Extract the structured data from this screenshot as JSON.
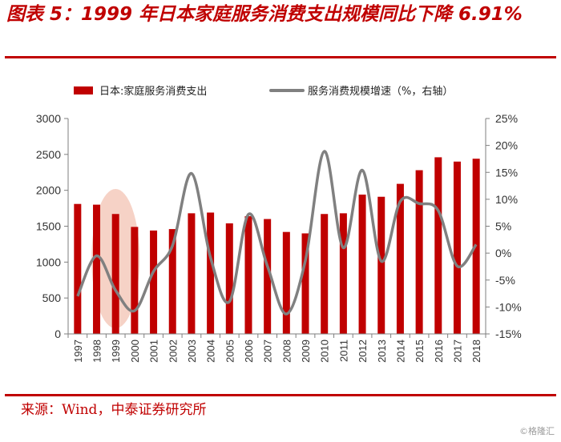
{
  "title": "图表 5：1999 年日本家庭服务消费支出规模同比下降 6.91%",
  "source": "来源：Wind，中泰证券研究所",
  "watermark": "©格隆汇",
  "colors": {
    "bar": "#c00000",
    "line": "#808080",
    "highlight": "#f4c7b8",
    "accent": "#c00000"
  },
  "chart_data": {
    "type": "bar",
    "categories": [
      "1997",
      "1998",
      "1999",
      "2000",
      "2001",
      "2002",
      "2003",
      "2004",
      "2005",
      "2006",
      "2007",
      "2008",
      "2009",
      "2010",
      "2011",
      "2012",
      "2013",
      "2014",
      "2015",
      "2016",
      "2017",
      "2018"
    ],
    "series": [
      {
        "name": "日本:家庭服务消费支出",
        "type": "bar",
        "axis": "left",
        "values": [
          1810,
          1800,
          1670,
          1490,
          1440,
          1460,
          1680,
          1690,
          1540,
          1640,
          1600,
          1420,
          1400,
          1670,
          1680,
          1940,
          1910,
          2090,
          2280,
          2460,
          2400,
          2440
        ]
      },
      {
        "name": "服务消费规模增速（%，右轴）",
        "type": "line",
        "axis": "right",
        "values": [
          -8.0,
          -0.5,
          -6.91,
          -10.7,
          -3.4,
          1.4,
          14.8,
          -0.8,
          -9.0,
          7.2,
          -2.4,
          -11.3,
          -1.4,
          18.9,
          1.0,
          15.4,
          -1.5,
          9.6,
          9.2,
          7.9,
          -2.4,
          1.6
        ]
      }
    ],
    "y_left": {
      "lim": [
        0,
        3000
      ],
      "ticks": [
        "0",
        "500",
        "1000",
        "1500",
        "2000",
        "2500",
        "3000"
      ]
    },
    "y_right": {
      "lim": [
        -15,
        25
      ],
      "ticks": [
        "-15%",
        "-10%",
        "-5%",
        "0%",
        "5%",
        "10%",
        "15%",
        "20%",
        "25%"
      ]
    },
    "legend": "top",
    "grid": false,
    "highlight_category": "1999"
  }
}
